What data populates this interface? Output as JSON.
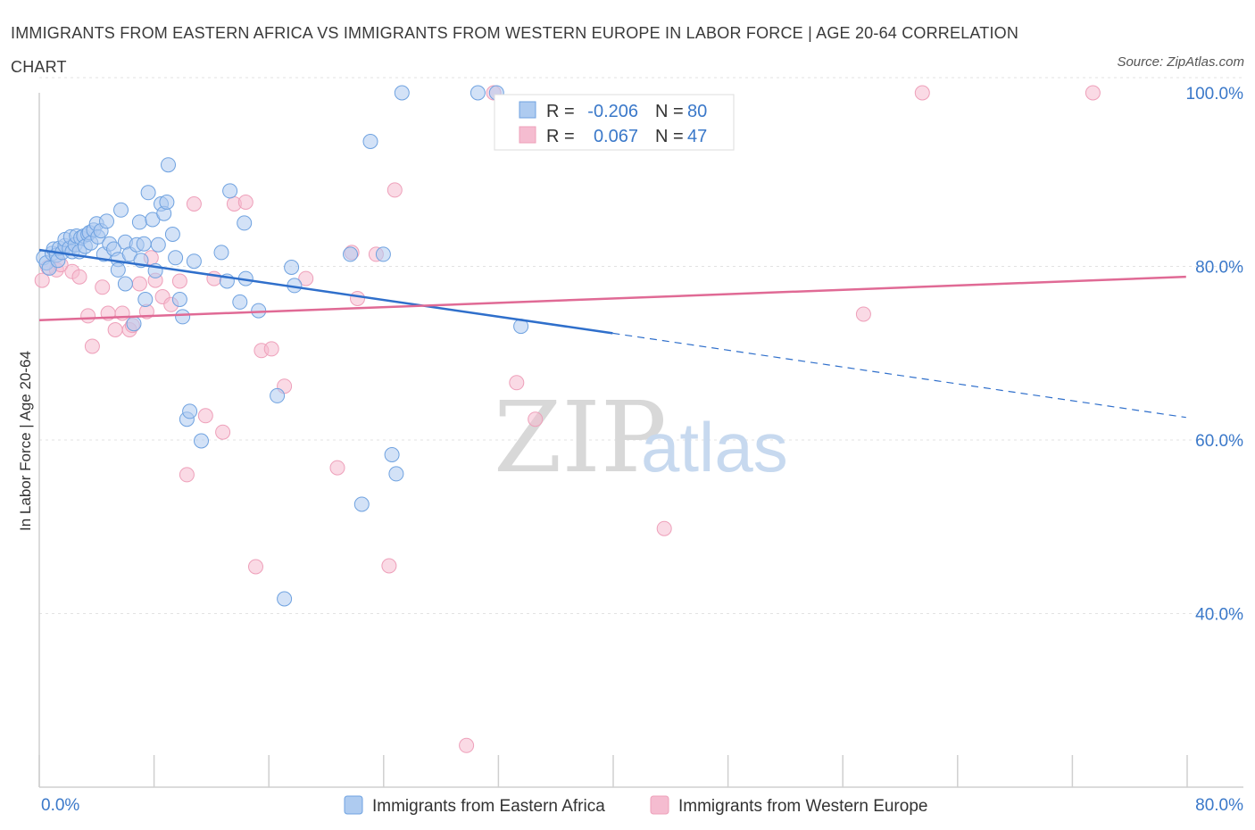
{
  "title": "IMMIGRANTS FROM EASTERN AFRICA VS IMMIGRANTS FROM WESTERN EUROPE IN LABOR FORCE | AGE 20-64 CORRELATION CHART",
  "source": "Source: ZipAtlas.com",
  "watermark": {
    "zip": "ZIP",
    "atlas": "atlas"
  },
  "stats": {
    "r_label": "R =",
    "n_label": "N =",
    "rows": [
      {
        "r": "-0.206",
        "n": "80",
        "color": "#aecbf0"
      },
      {
        "r": "0.067",
        "n": "47",
        "color": "#f5bcd0"
      }
    ]
  },
  "legend": [
    {
      "label": "Immigrants from Eastern Africa",
      "color": "#aecbf0"
    },
    {
      "label": "Immigrants from Western Europe",
      "color": "#f5bcd0"
    }
  ],
  "chart_data": {
    "type": "scatter",
    "title": "IMMIGRANTS FROM EASTERN AFRICA VS IMMIGRANTS FROM WESTERN EUROPE IN LABOR FORCE | AGE 20-64 CORRELATION CHART",
    "xlabel": "",
    "ylabel": "In Labor Force | Age 20-64",
    "xlim": [
      0,
      84
    ],
    "ylim": [
      20,
      100
    ],
    "x_tick_labels": [
      "0.0%",
      "80.0%"
    ],
    "y_ticks": [
      40,
      60,
      80,
      100
    ],
    "y_tick_labels": [
      "40.0%",
      "60.0%",
      "80.0%",
      "100.0%"
    ],
    "grid": true,
    "series": [
      {
        "name": "Immigrants from Eastern Africa",
        "color": "#6fa2e0",
        "line_color": "#2f6fcb",
        "trend": {
          "x0": 0,
          "y0": 81.9,
          "x1": 40,
          "y1": 72.3,
          "dashed_to_x": 80,
          "dashed_to_y": 62.6
        },
        "points": [
          [
            0.3,
            81.0
          ],
          [
            0.5,
            80.4
          ],
          [
            0.7,
            79.8
          ],
          [
            0.9,
            81.5
          ],
          [
            1.0,
            82.0
          ],
          [
            1.2,
            81.3
          ],
          [
            1.3,
            80.7
          ],
          [
            1.4,
            82.1
          ],
          [
            1.6,
            81.6
          ],
          [
            1.8,
            82.4
          ],
          [
            1.8,
            83.1
          ],
          [
            2.1,
            82.1
          ],
          [
            2.2,
            83.4
          ],
          [
            2.3,
            81.7
          ],
          [
            2.5,
            82.5
          ],
          [
            2.6,
            83.5
          ],
          [
            2.8,
            81.7
          ],
          [
            2.9,
            83.3
          ],
          [
            3.1,
            83.5
          ],
          [
            3.2,
            82.3
          ],
          [
            3.4,
            83.7
          ],
          [
            3.5,
            83.9
          ],
          [
            3.6,
            82.7
          ],
          [
            3.8,
            84.2
          ],
          [
            4.0,
            84.9
          ],
          [
            4.1,
            83.4
          ],
          [
            4.3,
            84.1
          ],
          [
            4.5,
            81.4
          ],
          [
            4.7,
            85.2
          ],
          [
            4.9,
            82.6
          ],
          [
            5.2,
            82.0
          ],
          [
            5.5,
            80.8
          ],
          [
            5.5,
            79.6
          ],
          [
            5.7,
            86.5
          ],
          [
            6.0,
            82.8
          ],
          [
            6.0,
            78.0
          ],
          [
            6.3,
            81.4
          ],
          [
            6.6,
            73.4
          ],
          [
            6.8,
            82.5
          ],
          [
            7.0,
            85.1
          ],
          [
            7.1,
            80.7
          ],
          [
            7.3,
            82.6
          ],
          [
            7.4,
            76.2
          ],
          [
            7.6,
            88.5
          ],
          [
            7.9,
            85.4
          ],
          [
            8.1,
            79.5
          ],
          [
            8.3,
            82.5
          ],
          [
            8.5,
            87.2
          ],
          [
            8.7,
            86.1
          ],
          [
            8.9,
            87.4
          ],
          [
            9.0,
            91.7
          ],
          [
            9.3,
            83.7
          ],
          [
            9.5,
            81.0
          ],
          [
            9.8,
            76.2
          ],
          [
            10.0,
            74.2
          ],
          [
            10.3,
            62.4
          ],
          [
            10.5,
            63.3
          ],
          [
            10.8,
            80.6
          ],
          [
            11.3,
            59.9
          ],
          [
            12.7,
            81.6
          ],
          [
            13.1,
            78.3
          ],
          [
            13.3,
            88.7
          ],
          [
            14.0,
            75.9
          ],
          [
            14.3,
            85.0
          ],
          [
            14.4,
            78.6
          ],
          [
            15.3,
            74.9
          ],
          [
            16.6,
            65.1
          ],
          [
            17.6,
            79.9
          ],
          [
            17.8,
            77.8
          ],
          [
            21.7,
            81.4
          ],
          [
            22.5,
            52.6
          ],
          [
            23.1,
            94.4
          ],
          [
            24.6,
            58.3
          ],
          [
            24.9,
            56.1
          ],
          [
            25.3,
            100.0
          ],
          [
            17.1,
            41.7
          ],
          [
            30.6,
            100.0
          ],
          [
            31.9,
            100.0
          ],
          [
            33.6,
            73.1
          ],
          [
            24.0,
            81.4
          ]
        ]
      },
      {
        "name": "Immigrants from Western Europe",
        "color": "#eea0ba",
        "line_color": "#e06a95",
        "trend": {
          "x0": 0,
          "y0": 73.8,
          "x1": 80,
          "y1": 78.8
        },
        "points": [
          [
            0.2,
            78.4
          ],
          [
            0.6,
            79.9
          ],
          [
            1.2,
            79.6
          ],
          [
            1.5,
            80.2
          ],
          [
            2.3,
            79.4
          ],
          [
            2.8,
            78.8
          ],
          [
            3.4,
            74.3
          ],
          [
            3.7,
            70.8
          ],
          [
            4.4,
            77.6
          ],
          [
            4.8,
            74.6
          ],
          [
            5.3,
            72.7
          ],
          [
            5.8,
            74.6
          ],
          [
            6.3,
            72.7
          ],
          [
            6.5,
            73.2
          ],
          [
            7.0,
            78.0
          ],
          [
            7.5,
            74.8
          ],
          [
            7.8,
            81.0
          ],
          [
            8.1,
            78.4
          ],
          [
            8.6,
            76.5
          ],
          [
            9.2,
            75.6
          ],
          [
            9.8,
            78.3
          ],
          [
            10.3,
            56.0
          ],
          [
            10.8,
            87.2
          ],
          [
            11.6,
            62.8
          ],
          [
            12.2,
            78.6
          ],
          [
            12.8,
            60.9
          ],
          [
            13.6,
            87.2
          ],
          [
            14.4,
            87.4
          ],
          [
            15.1,
            45.4
          ],
          [
            15.5,
            70.3
          ],
          [
            16.2,
            70.5
          ],
          [
            17.1,
            66.2
          ],
          [
            18.6,
            78.6
          ],
          [
            20.8,
            56.8
          ],
          [
            21.8,
            81.6
          ],
          [
            22.2,
            76.3
          ],
          [
            23.5,
            81.4
          ],
          [
            24.4,
            45.5
          ],
          [
            24.8,
            88.8
          ],
          [
            29.8,
            24.8
          ],
          [
            31.7,
            100.0
          ],
          [
            33.3,
            66.6
          ],
          [
            34.6,
            62.4
          ],
          [
            43.6,
            49.8
          ],
          [
            57.5,
            74.5
          ],
          [
            61.6,
            100.0
          ],
          [
            73.5,
            100.0
          ]
        ]
      }
    ]
  }
}
